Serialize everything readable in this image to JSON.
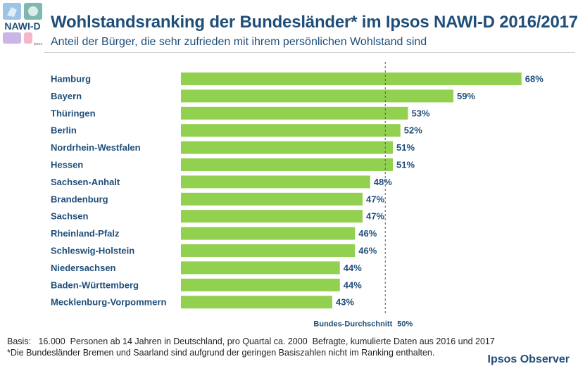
{
  "header": {
    "title": "Wohlstandsranking der Bundesländer* im Ipsos NAWI-D 2016/2017",
    "subtitle": "Anteil der Bürger, die sehr zufrieden mit ihrem persönlichen Wohlstand sind"
  },
  "logo": {
    "text": "NAWI-D",
    "subtext": "Ipsos"
  },
  "colors": {
    "bar": "#92d050",
    "label": "#1f4e79",
    "text": "#1f4e79",
    "reference": "#555555"
  },
  "chart_data": {
    "type": "bar",
    "orientation": "horizontal",
    "title": "Wohlstandsranking der Bundesländer* im Ipsos NAWI-D 2016/2017",
    "subtitle": "Anteil der Bürger, die sehr zufrieden mit ihrem persönlichen Wohlstand sind",
    "categories": [
      "Hamburg",
      "Bayern",
      "Thüringen",
      "Berlin",
      "Nordrhein-Westfalen",
      "Hessen",
      "Sachsen-Anhalt",
      "Brandenburg",
      "Sachsen",
      "Rheinland-Pfalz",
      "Schleswig-Holstein",
      "Niedersachsen",
      "Baden-Württemberg",
      "Mecklenburg-Vorpommern"
    ],
    "values": [
      68,
      59,
      53,
      52,
      51,
      51,
      48,
      47,
      47,
      46,
      46,
      44,
      44,
      43
    ],
    "value_labels": [
      "68%",
      "59%",
      "53%",
      "52%",
      "51%",
      "51%",
      "48%",
      "47%",
      "47%",
      "46%",
      "46%",
      "44%",
      "44%",
      "43%"
    ],
    "unit": "%",
    "xlim": [
      23,
      75
    ],
    "reference_line": {
      "value": 50,
      "label": "Bundes-Durchschnitt",
      "value_label": "50%"
    },
    "xlabel": "",
    "ylabel": "",
    "grid": false,
    "legend": "none"
  },
  "footer": {
    "basis": "Basis:   16.000  Personen ab 14 Jahren in Deutschland, pro Quartal ca. 2000  Befragte, kumulierte Daten aus 2016 und 2017",
    "note": "*Die Bundesländer Bremen und Saarland sind aufgrund der geringen Basiszahlen nicht im Ranking enthalten.",
    "brand": "Ipsos Observer"
  }
}
